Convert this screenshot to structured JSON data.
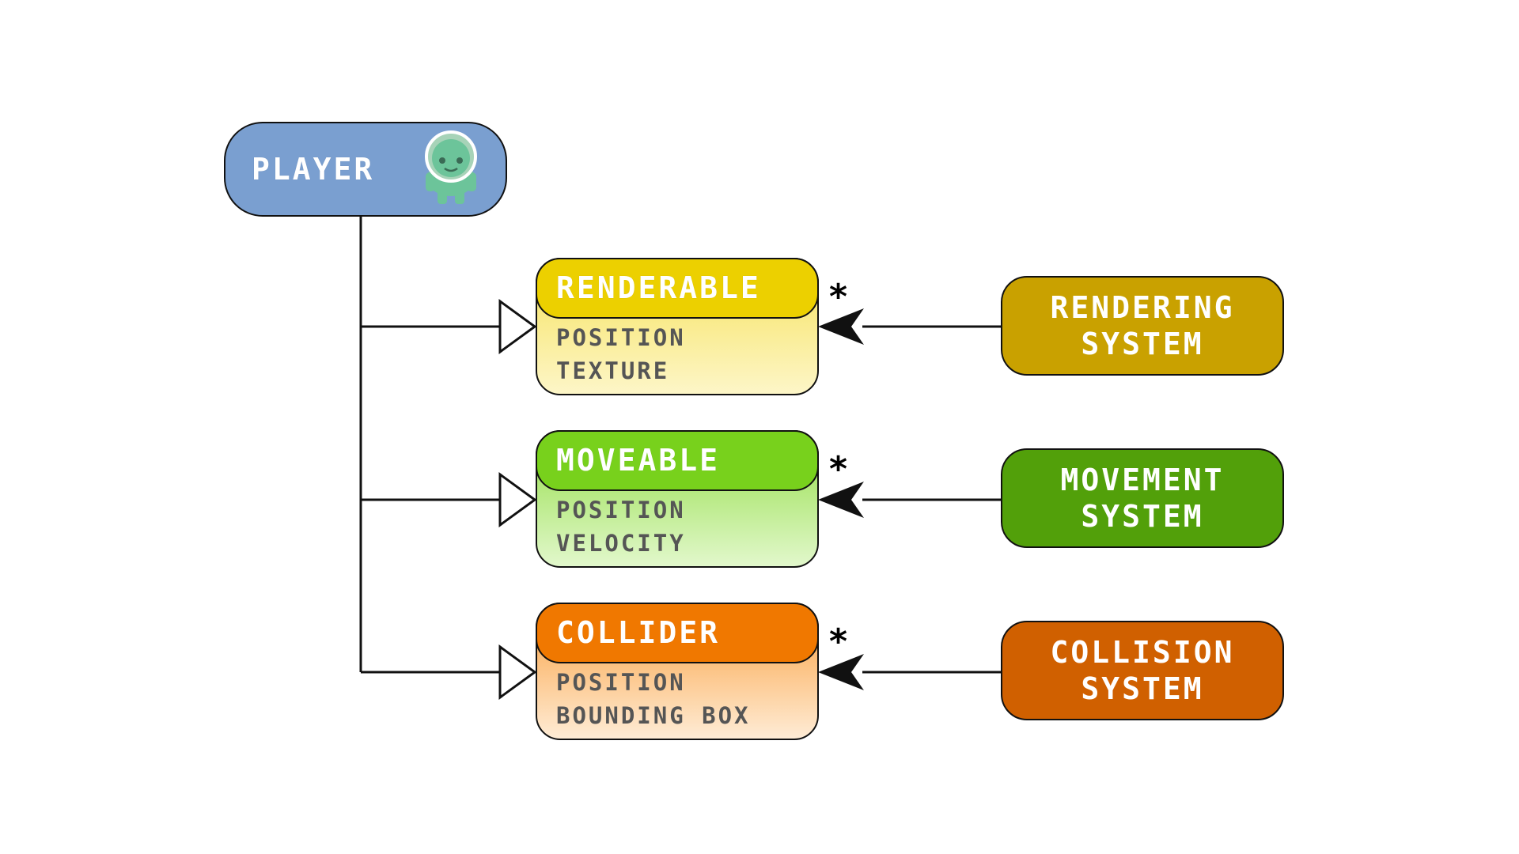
{
  "player": {
    "label": "PLAYER",
    "color": "#7a9fd0"
  },
  "components": [
    {
      "id": "renderable",
      "title": "RENDERABLE",
      "fields": [
        "POSITION",
        "TEXTURE"
      ],
      "header_color": "#ecd000",
      "body_top": "#f6e25a",
      "body_bottom": "#fdf6c8",
      "multiplicity": "*"
    },
    {
      "id": "moveable",
      "title": "MOVEABLE",
      "fields": [
        "POSITION",
        "VELOCITY"
      ],
      "header_color": "#78d11c",
      "body_top": "#92dd45",
      "body_bottom": "#e2f8cc",
      "multiplicity": "*"
    },
    {
      "id": "collider",
      "title": "COLLIDER",
      "fields": [
        "POSITION",
        "BOUNDING BOX"
      ],
      "header_color": "#f07800",
      "body_top": "#fb9f3c",
      "body_bottom": "#feecd6",
      "multiplicity": "*"
    }
  ],
  "systems": [
    {
      "id": "rendering",
      "label_line1": "RENDERING",
      "label_line2": "SYSTEM",
      "color": "#c9a100"
    },
    {
      "id": "movement",
      "label_line1": "MOVEMENT",
      "label_line2": "SYSTEM",
      "color": "#52a00a"
    },
    {
      "id": "collision",
      "label_line1": "COLLISION",
      "label_line2": "SYSTEM",
      "color": "#d06000"
    }
  ],
  "icons": {
    "player_avatar": "alien-astronaut-icon"
  }
}
